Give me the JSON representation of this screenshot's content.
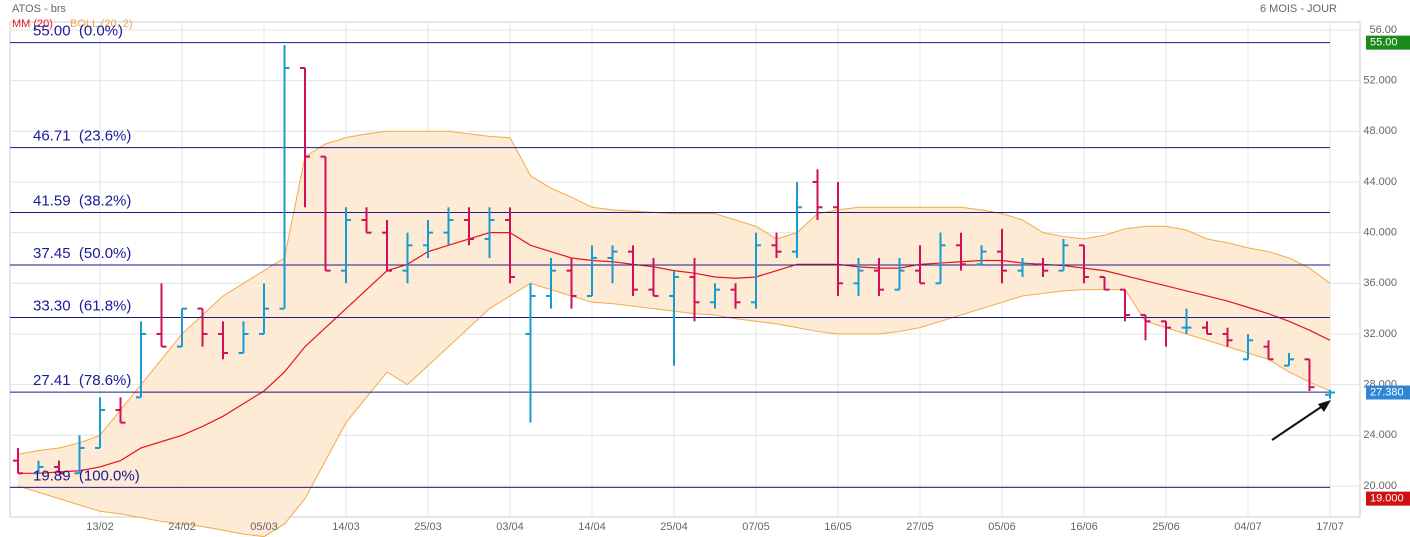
{
  "chart_data": {
    "type": "ohlc",
    "title": "ATOS - brs",
    "subtitle": "6 MOIS - JOUR",
    "indicators": [
      {
        "name": "MM (20)",
        "color": "#e8141c"
      },
      {
        "name": "BOLL (20, 2)",
        "color": "#f4a94a"
      }
    ],
    "categories": [
      null,
      null,
      null,
      null,
      "13/02",
      null,
      null,
      null,
      "24/02",
      null,
      null,
      null,
      "05/03",
      null,
      null,
      null,
      "14/03",
      null,
      null,
      null,
      "25/03",
      null,
      null,
      null,
      "03/04",
      null,
      null,
      null,
      "14/04",
      null,
      null,
      null,
      "25/04",
      null,
      null,
      null,
      "07/05",
      null,
      null,
      null,
      "16/05",
      null,
      null,
      null,
      "27/05",
      null,
      null,
      null,
      "05/06",
      null,
      null,
      null,
      "16/06",
      null,
      null,
      null,
      "25/06",
      null,
      null,
      null,
      "04/07",
      null,
      null,
      null,
      "17/07"
    ],
    "open": [
      22,
      21,
      21.5,
      21,
      23,
      26,
      27,
      32,
      31,
      34,
      32,
      30.5,
      32,
      34,
      53,
      46,
      37,
      41,
      40,
      37,
      39,
      40,
      41,
      39.5,
      41,
      32,
      35,
      37,
      35,
      38,
      38.5,
      35.5,
      35,
      36.5,
      34.5,
      35.5,
      34.5,
      39,
      38.5,
      44,
      42,
      36,
      37,
      35.5,
      37,
      36,
      39,
      37.5,
      38.5,
      37,
      37.5,
      37,
      39,
      36.5,
      35.5,
      33.5,
      33,
      32.5,
      32.5,
      32,
      30,
      31,
      29.5,
      30,
      27.2
    ],
    "high": [
      23,
      22,
      22,
      24,
      27,
      27,
      33,
      36,
      34,
      34,
      33,
      33,
      36,
      54.8,
      53,
      46,
      42,
      42,
      41,
      40,
      41,
      42,
      42,
      42,
      42,
      36,
      38,
      38,
      39,
      39,
      39,
      38,
      37,
      38,
      36,
      36,
      40,
      40,
      44,
      45,
      44,
      38,
      38,
      38,
      39,
      40,
      40,
      39,
      40.3,
      38,
      38,
      39.5,
      39,
      36.5,
      35.5,
      33.5,
      33,
      34,
      33,
      32.5,
      32,
      31.5,
      30.5,
      30,
      27.6
    ],
    "low": [
      21,
      21,
      21,
      21,
      23,
      25,
      27,
      31,
      31,
      31,
      30,
      30.5,
      32,
      34,
      42,
      37,
      36,
      40,
      37,
      36,
      38,
      39,
      39,
      38,
      36,
      25,
      34,
      34,
      35,
      36,
      35,
      35,
      29.5,
      33,
      34,
      34,
      34,
      38,
      38,
      41,
      35,
      35,
      35,
      35.5,
      36,
      36,
      37,
      37.5,
      36,
      36.5,
      36.5,
      37,
      36,
      35.5,
      33,
      31.5,
      31,
      32,
      32,
      31,
      30,
      30,
      29.5,
      27.5,
      26.9
    ],
    "close": [
      21,
      21.5,
      21,
      23,
      26,
      25,
      32,
      31,
      34,
      32,
      30.5,
      32,
      34,
      53,
      46,
      37,
      41,
      40,
      37,
      39,
      40,
      41,
      39.5,
      41,
      36.5,
      35,
      37,
      35,
      38,
      38.5,
      35.5,
      35,
      36.5,
      34.5,
      35.5,
      34.5,
      39,
      38.5,
      42,
      42,
      36,
      37,
      35.5,
      37,
      36,
      39,
      37.5,
      38.5,
      37,
      37.5,
      37,
      39,
      36.5,
      35.5,
      33.5,
      33,
      32.5,
      32.5,
      32,
      31.5,
      31.5,
      30,
      30,
      27.8,
      27.38
    ],
    "up_color": "#1a9bd0",
    "down_color": "#d0105a",
    "ma": [
      21,
      21,
      21.1,
      21.2,
      21.5,
      22,
      23,
      23.5,
      24,
      24.7,
      25.5,
      26.5,
      27.5,
      29,
      31,
      32.5,
      34,
      35.5,
      37,
      37.5,
      38.5,
      39,
      39.5,
      40,
      40,
      39,
      38.5,
      38,
      37.8,
      37.7,
      37.5,
      37.3,
      37,
      36.8,
      36.5,
      36.4,
      36.5,
      37,
      37.5,
      37.5,
      37.5,
      37.3,
      37.2,
      37.2,
      37.5,
      37.6,
      37.7,
      37.8,
      37.8,
      37.6,
      37.5,
      37.4,
      37.2,
      37,
      36.6,
      36.2,
      35.8,
      35.4,
      35,
      34.6,
      34.1,
      33.6,
      33,
      32.3,
      31.5
    ],
    "boll_upper": [
      22.5,
      22.8,
      23,
      23.4,
      24,
      26,
      28,
      30,
      32,
      33.5,
      35,
      36,
      37,
      38,
      46,
      47,
      47.5,
      47.8,
      48,
      48,
      48,
      48,
      47.8,
      47.6,
      47.5,
      44.5,
      43.5,
      42.8,
      42,
      41.8,
      41.7,
      41.6,
      41.5,
      41.5,
      41.5,
      41,
      40.5,
      39.5,
      40,
      41.5,
      41.8,
      42,
      42,
      42,
      42,
      42,
      42,
      41.8,
      41.5,
      41,
      40,
      39.7,
      39.5,
      39.8,
      40.3,
      40.5,
      40.5,
      40.2,
      39.5,
      39.2,
      38.8,
      38.5,
      38,
      37.2,
      36
    ],
    "boll_lower": [
      20,
      19.5,
      19,
      18.5,
      18,
      17.8,
      17.5,
      17.2,
      17,
      16.8,
      16.5,
      16.2,
      16,
      17,
      19,
      22,
      25,
      27,
      29,
      28,
      29.5,
      31,
      32.5,
      34,
      35,
      36,
      35.5,
      35,
      34.5,
      34.4,
      34.2,
      34,
      33.8,
      33.6,
      33.5,
      33.2,
      33,
      32.8,
      32.5,
      32.2,
      32,
      32,
      32,
      32.2,
      32.5,
      33,
      33.5,
      34,
      34.5,
      35,
      35.2,
      35.4,
      35.5,
      35.5,
      35.5,
      33,
      32.5,
      32,
      31.5,
      31,
      30.5,
      30,
      29,
      28.2,
      27.5
    ],
    "fib_levels": [
      {
        "value": 55,
        "label": "55.00  (0.0%)"
      },
      {
        "value": 46.71,
        "label": "46.71  (23.6%)"
      },
      {
        "value": 41.59,
        "label": "41.59  (38.2%)"
      },
      {
        "value": 37.45,
        "label": "37.45  (50.0%)"
      },
      {
        "value": 33.3,
        "label": "33.30  (61.8%)"
      },
      {
        "value": 27.41,
        "label": "27.41  (78.6%)"
      },
      {
        "value": 19.89,
        "label": "19.89  (100.0%)"
      }
    ],
    "price_tags": [
      {
        "value": 55,
        "label": "55.00",
        "color": "#1a8a1a"
      },
      {
        "value": 27.38,
        "label": "27.380",
        "color": "#2f86d6"
      },
      {
        "value": 19,
        "label": "19.000",
        "color": "#d01010"
      }
    ],
    "ylim": [
      17.55,
      56.63
    ],
    "yticks": [
      {
        "value": 20,
        "label": "20.000"
      },
      {
        "value": 24,
        "label": "24.000"
      },
      {
        "value": 28,
        "label": "28.000"
      },
      {
        "value": 32,
        "label": "32.000"
      },
      {
        "value": 36,
        "label": "36.000"
      },
      {
        "value": 40,
        "label": "40.000"
      },
      {
        "value": 44,
        "label": "44.000"
      },
      {
        "value": 48,
        "label": "48.000"
      },
      {
        "value": 52,
        "label": "52.000"
      },
      {
        "value": 56,
        "label": "56.00"
      }
    ],
    "grid": true
  }
}
